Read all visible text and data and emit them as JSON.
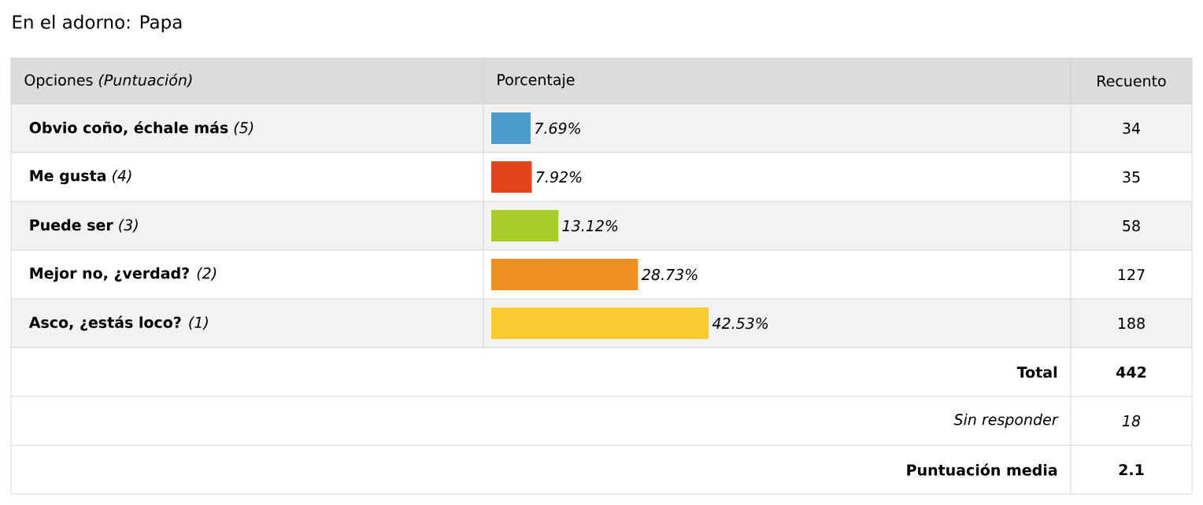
{
  "chart_data": {
    "type": "bar",
    "orientation": "horizontal",
    "title": "En el adorno: Papa",
    "ylabel": "Opciones *(Puntuación)*",
    "xlabel": "Porcentaje",
    "categories": [
      "**Obvio coño, échale más** *(5)*",
      "**Me gusta** *(4)*",
      "**Puede ser** *(3)*",
      "**Mejor no, ¿verdad?** *(2)*",
      "**Asco, ¿estás loco?** *(1)*"
    ],
    "values": [
      7.69,
      7.92,
      13.12,
      28.73,
      42.53
    ],
    "value_labels": [
      "7.69%",
      "7.92%",
      "13.12%",
      "28.73%",
      "42.53%"
    ],
    "colors": [
      "#4a9bcc",
      "#e2451c",
      "#a9cb2c",
      "#ef9022",
      "#f9cb2e"
    ],
    "tick_labels": "y",
    "annotations": [
      "Recuento",
      "34",
      "35",
      "58",
      "127",
      "188",
      "Total",
      "442",
      "Sin responder",
      "18",
      "Puntuación media",
      "2.1"
    ]
  }
}
